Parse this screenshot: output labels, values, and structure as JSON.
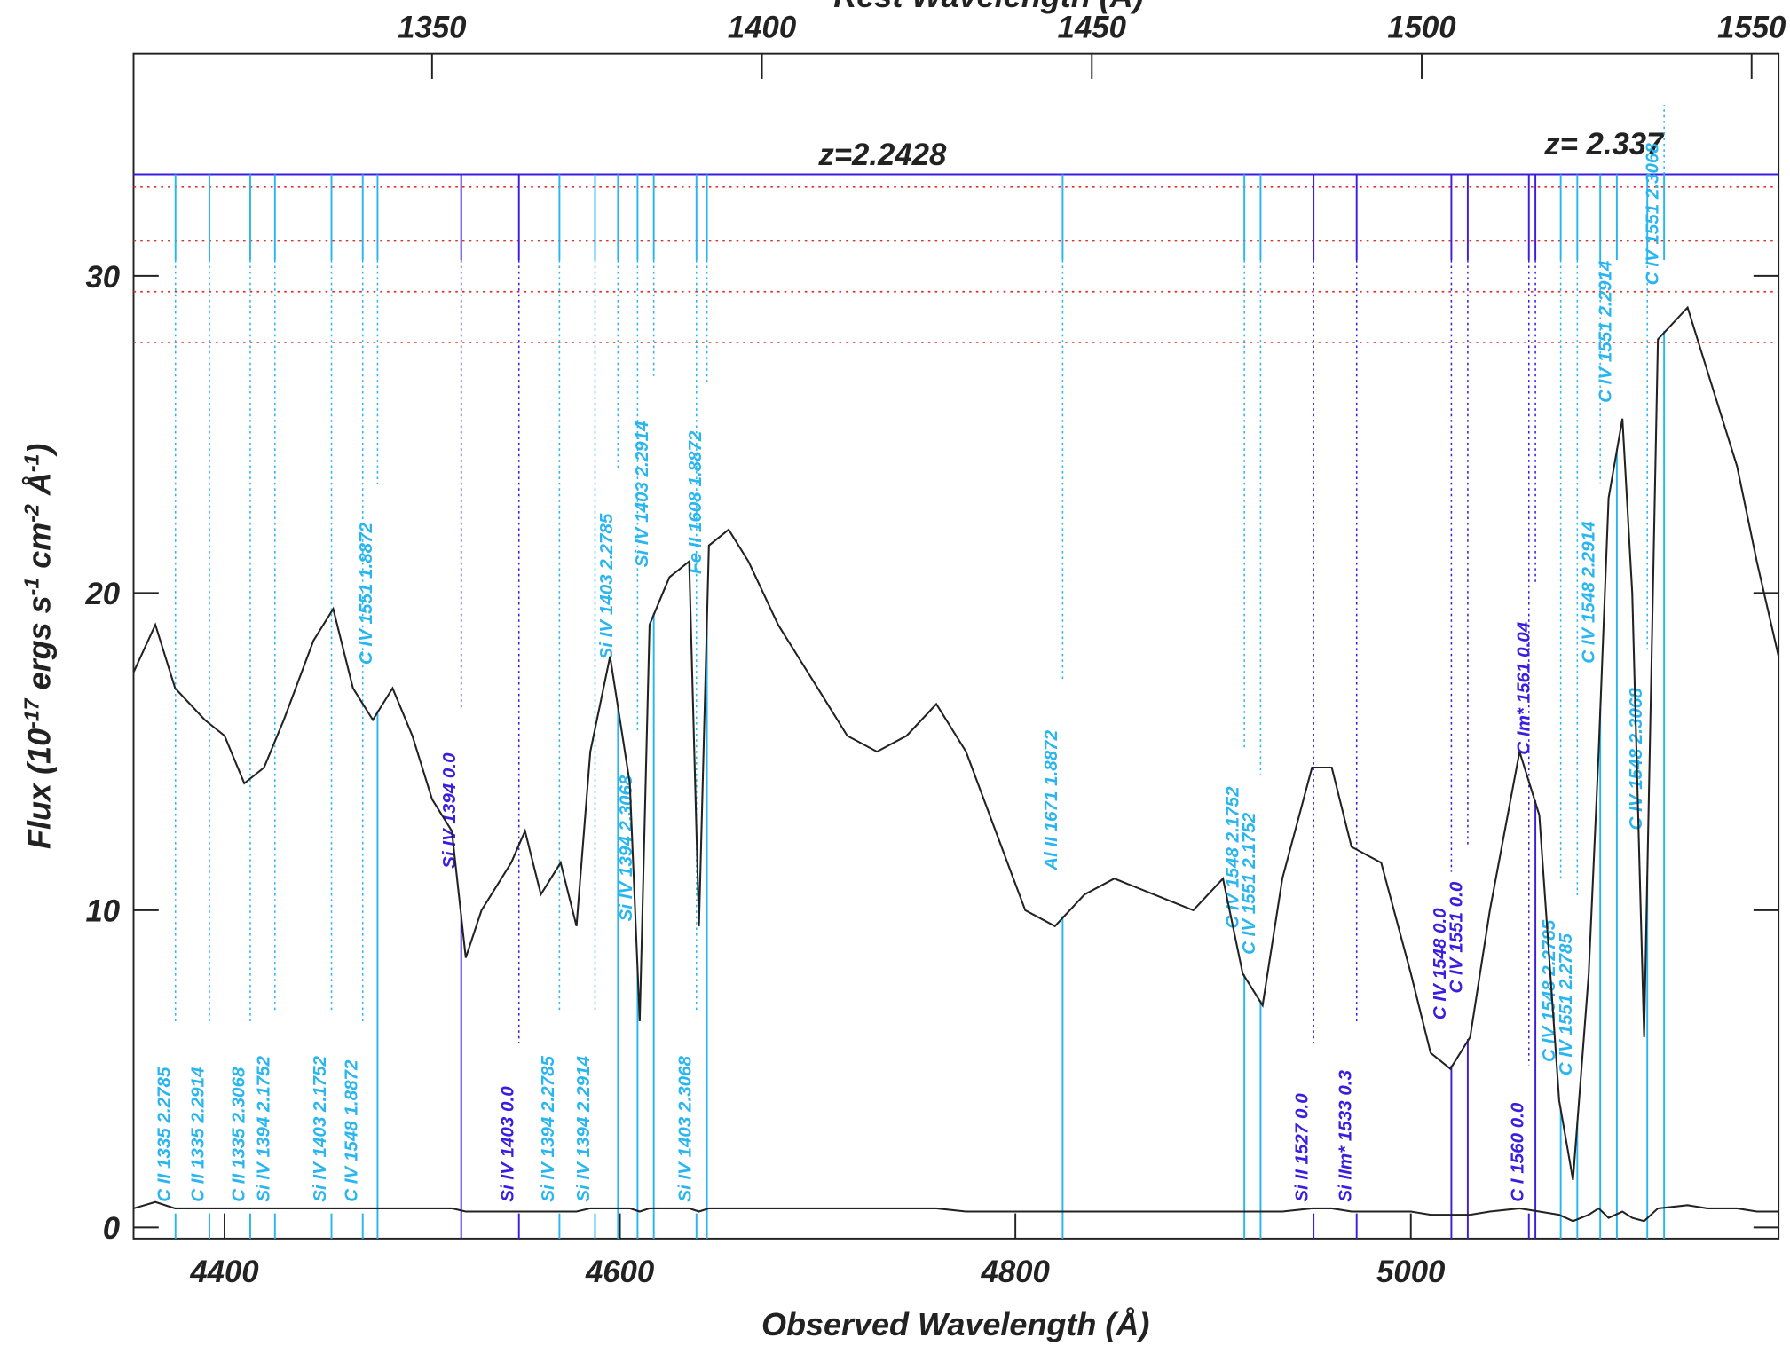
{
  "chart_data": {
    "type": "line",
    "title": "Rest Wavelength (Å)",
    "xlabel": "Observed Wavelength (Å)",
    "ylabel_parts": [
      "Flux (10",
      "-17",
      " ergs s",
      "-1",
      " cm",
      "-2",
      " Å",
      "-1",
      ")"
    ],
    "redshift_label": "z= 2.337",
    "system_label": "z=2.2428",
    "xlim": [
      4354,
      5186
    ],
    "xticks": [
      4400,
      4600,
      4800,
      5000
    ],
    "x2lim": [
      1304.76,
      1554.09
    ],
    "x2ticks": [
      1350,
      1400,
      1450,
      1500,
      1550
    ],
    "ylim": [
      -0.35,
      37
    ],
    "yticks": [
      0,
      10,
      20,
      30
    ],
    "system_level": 33.2,
    "reference_levels": [
      32.8,
      31.1,
      29.5,
      27.9
    ],
    "reference_color": "#e0302a",
    "system_color": "#3a1ee0",
    "x": [
      4354,
      4365,
      4375,
      4390,
      4400,
      4410,
      4420,
      4430,
      4445,
      4455,
      4465,
      4475,
      4485,
      4495,
      4505,
      4515,
      4522,
      4530,
      4545,
      4552,
      4560,
      4570,
      4578,
      4585,
      4595,
      4600,
      4605,
      4610,
      4615,
      4625,
      4635,
      4640,
      4645,
      4655,
      4665,
      4680,
      4700,
      4715,
      4730,
      4745,
      4760,
      4775,
      4790,
      4805,
      4820,
      4835,
      4850,
      4870,
      4890,
      4905,
      4915,
      4925,
      4935,
      4950,
      4960,
      4970,
      4985,
      5000,
      5010,
      5020,
      5030,
      5040,
      5055,
      5065,
      5075,
      5082,
      5090,
      5095,
      5100,
      5107,
      5112,
      5118,
      5125,
      5140,
      5150,
      5165,
      5175,
      5186
    ],
    "series": [
      {
        "name": "Flux",
        "color": "#222222",
        "values": [
          17.5,
          19,
          17,
          16,
          15.5,
          14,
          14.5,
          16,
          18.5,
          19.5,
          17,
          16,
          17,
          15.5,
          13.5,
          12.5,
          8.5,
          10,
          11.5,
          12.5,
          10.5,
          11.5,
          9.5,
          15,
          18,
          16,
          14,
          6.5,
          19,
          20.5,
          21,
          9.5,
          21.5,
          22,
          21,
          19,
          17,
          15.5,
          15,
          15.5,
          16.5,
          15,
          12.5,
          10,
          9.5,
          10.5,
          11,
          10.5,
          10,
          11,
          8,
          7,
          11,
          14.5,
          14.5,
          12,
          11.5,
          8,
          5.5,
          5,
          6,
          10,
          15,
          13,
          4,
          1.5,
          8,
          15,
          23,
          25.5,
          20,
          6,
          28,
          29,
          27,
          24,
          21,
          18
        ]
      },
      {
        "name": "Error",
        "color": "#222222",
        "values": [
          0.6,
          0.8,
          0.6,
          0.6,
          0.6,
          0.6,
          0.6,
          0.6,
          0.6,
          0.6,
          0.6,
          0.6,
          0.6,
          0.6,
          0.6,
          0.6,
          0.5,
          0.5,
          0.5,
          0.5,
          0.5,
          0.5,
          0.5,
          0.6,
          0.6,
          0.6,
          0.6,
          0.5,
          0.6,
          0.6,
          0.6,
          0.5,
          0.6,
          0.6,
          0.6,
          0.6,
          0.6,
          0.6,
          0.6,
          0.6,
          0.6,
          0.5,
          0.5,
          0.5,
          0.5,
          0.5,
          0.5,
          0.5,
          0.5,
          0.5,
          0.5,
          0.5,
          0.5,
          0.6,
          0.6,
          0.5,
          0.5,
          0.5,
          0.4,
          0.4,
          0.4,
          0.5,
          0.6,
          0.5,
          0.4,
          0.2,
          0.4,
          0.6,
          0.3,
          0.5,
          0.3,
          0.2,
          0.6,
          0.7,
          0.6,
          0.6,
          0.5,
          0.5
        ]
      }
    ],
    "absorption_lines": [
      {
        "label": "C II 1335 2.2785",
        "x": 4375.2,
        "color": "#29b6f0",
        "position": "low"
      },
      {
        "label": "C II 1335 2.2914",
        "x": 4392.4,
        "color": "#29b6f0",
        "position": "low"
      },
      {
        "label": "C II 1335 2.3068",
        "x": 4413.0,
        "color": "#29b6f0",
        "position": "low"
      },
      {
        "label": "Si IV 1394 2.1752",
        "x": 4425.5,
        "color": "#29b6f0",
        "position": "low"
      },
      {
        "label": "Si IV 1403 2.1752",
        "x": 4454.1,
        "color": "#29b6f0",
        "position": "low"
      },
      {
        "label": "C IV 1548 1.8872",
        "x": 4469.9,
        "color": "#29b6f0",
        "position": "low"
      },
      {
        "label": "C IV 1551 1.8872",
        "x": 4477.4,
        "color": "#29b6f0",
        "position": "high"
      },
      {
        "label": "Si IV 1394 0.0",
        "x": 4519.7,
        "color": "#3a1ee0",
        "position": "high"
      },
      {
        "label": "Si IV 1403 0.0",
        "x": 4548.9,
        "color": "#3a1ee0",
        "position": "low"
      },
      {
        "label": "Si IV 1394 2.2785",
        "x": 4569.4,
        "color": "#29b6f0",
        "position": "low"
      },
      {
        "label": "Si IV 1394 2.2914",
        "x": 4587.4,
        "color": "#29b6f0",
        "position": "low"
      },
      {
        "label": "Si IV 1403 2.2785",
        "x": 4599.0,
        "color": "#29b6f0",
        "position": "high"
      },
      {
        "label": "Si IV 1394 2.3068",
        "x": 4608.9,
        "color": "#29b6f0",
        "position": "high"
      },
      {
        "label": "Si IV 1403 2.2914",
        "x": 4617.1,
        "color": "#29b6f0",
        "position": "high"
      },
      {
        "label": "Si IV 1403 2.3068",
        "x": 4638.7,
        "color": "#29b6f0",
        "position": "low"
      },
      {
        "label": "Fe II 1608 1.8872",
        "x": 4644.0,
        "color": "#29b6f0",
        "position": "high"
      },
      {
        "label": "Al II 1671 1.8872",
        "x": 4823.9,
        "color": "#29b6f0",
        "position": "high"
      },
      {
        "label": "C IV 1548 2.1752",
        "x": 4915.8,
        "color": "#29b6f0",
        "position": "high"
      },
      {
        "label": "C IV 1551 2.1752",
        "x": 4924.0,
        "color": "#29b6f0",
        "position": "high"
      },
      {
        "label": "Si II 1527 0.0",
        "x": 4950.8,
        "color": "#3a1ee0",
        "position": "low"
      },
      {
        "label": "Si IIm* 1533 0.3",
        "x": 4972.6,
        "color": "#3a1ee0",
        "position": "low"
      },
      {
        "label": "C IV 1548 0.0",
        "x": 5020.5,
        "color": "#3a1ee0",
        "position": "high"
      },
      {
        "label": "C IV 1551 0.0",
        "x": 5028.8,
        "color": "#3a1ee0",
        "position": "high"
      },
      {
        "label": "C I 1560 0.0",
        "x": 5059.7,
        "color": "#3a1ee0",
        "position": "low"
      },
      {
        "label": "C Im* 1561 0.04",
        "x": 5063.0,
        "color": "#3a1ee0",
        "position": "high"
      },
      {
        "label": "C IV 1548 2.2785",
        "x": 5075.8,
        "color": "#29b6f0",
        "position": "high"
      },
      {
        "label": "C IV 1551 2.2785",
        "x": 5084.2,
        "color": "#29b6f0",
        "position": "high"
      },
      {
        "label": "C IV 1548 2.2914",
        "x": 5095.8,
        "color": "#29b6f0",
        "position": "high"
      },
      {
        "label": "C IV 1551 2.2914",
        "x": 5104.2,
        "color": "#29b6f0",
        "position": "high"
      },
      {
        "label": "C IV 1548 2.3068",
        "x": 5119.6,
        "color": "#29b6f0",
        "position": "high"
      },
      {
        "label": "C IV 1551 2.3068",
        "x": 5128.1,
        "color": "#29b6f0",
        "position": "high"
      }
    ]
  }
}
